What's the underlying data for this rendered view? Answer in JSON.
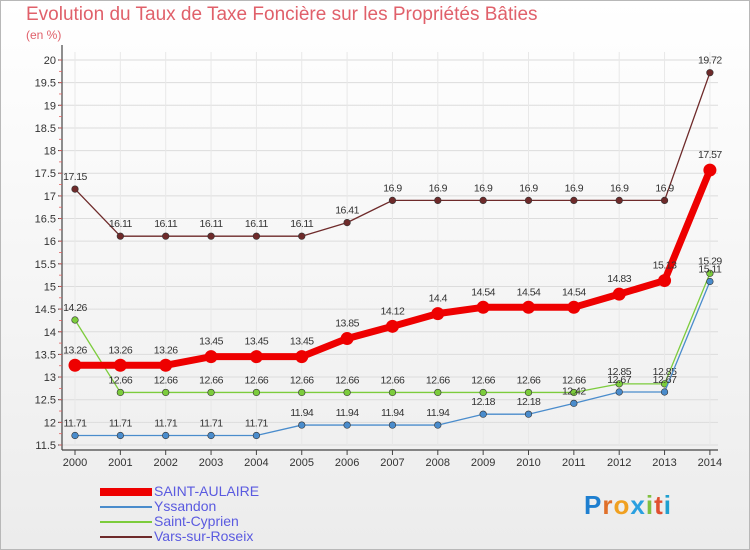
{
  "chart_data": {
    "type": "line",
    "title": "Evolution du Taux de Taxe Foncière sur les Propriétés Bâties",
    "unit_label": "(en %)",
    "x": [
      "2000",
      "2001",
      "2002",
      "2003",
      "2004",
      "2005",
      "2006",
      "2007",
      "2008",
      "2009",
      "2010",
      "2011",
      "2012",
      "2013",
      "2014"
    ],
    "y_ticks": [
      "11.5",
      "12",
      "12.5",
      "13",
      "13.5",
      "14",
      "14.5",
      "15",
      "15.5",
      "16",
      "16.5",
      "17",
      "17.5",
      "18",
      "18.5",
      "19",
      "19.5",
      "20"
    ],
    "ylim": [
      11.5,
      20
    ],
    "series": [
      {
        "name": "Vars-sur-Roseix",
        "color": "#6e2a2a",
        "values": [
          17.15,
          16.11,
          16.11,
          16.11,
          16.11,
          16.11,
          16.41,
          16.9,
          16.9,
          16.9,
          16.9,
          16.9,
          16.9,
          16.9,
          19.72
        ],
        "labels": [
          "17.15",
          "16.11",
          "16.11",
          "16.11",
          "16.11",
          "16.11",
          "16.41",
          "16.9",
          "16.9",
          "16.9",
          "16.9",
          "16.9",
          "16.9",
          "16.9",
          "19.72"
        ]
      },
      {
        "name": "Saint-Cyprien",
        "color": "#7ccc3c",
        "values": [
          14.26,
          12.66,
          12.66,
          12.66,
          12.66,
          12.66,
          12.66,
          12.66,
          12.66,
          12.66,
          12.66,
          12.66,
          12.85,
          12.85,
          15.29
        ],
        "labels": [
          "14.26",
          "12.66",
          "12.66",
          "12.66",
          "12.66",
          "12.66",
          "12.66",
          "12.66",
          "12.66",
          "12.66",
          "12.66",
          "12.66",
          "12.85",
          "12.85",
          "15.29"
        ]
      },
      {
        "name": "Yssandon",
        "color": "#4a8ccc",
        "values": [
          11.71,
          11.71,
          11.71,
          11.71,
          11.71,
          11.94,
          11.94,
          11.94,
          11.94,
          12.18,
          12.18,
          12.42,
          12.67,
          12.67,
          15.11
        ],
        "labels": [
          "11.71",
          "11.71",
          "11.71",
          "11.71",
          "11.71",
          "11.94",
          "11.94",
          "11.94",
          "11.94",
          "12.18",
          "12.18",
          "12.42",
          "12.67",
          "12.67",
          "15.11"
        ]
      },
      {
        "name": "SAINT-AULAIRE",
        "color": "#ee0000",
        "values": [
          13.26,
          13.26,
          13.26,
          13.45,
          13.45,
          13.45,
          13.85,
          14.12,
          14.4,
          14.54,
          14.54,
          14.54,
          14.83,
          15.13,
          17.57
        ],
        "labels": [
          "13.26",
          "13.26",
          "13.26",
          "13.45",
          "13.45",
          "13.45",
          "13.85",
          "14.12",
          "14.4",
          "14.54",
          "14.54",
          "14.54",
          "14.83",
          "15.13",
          "17.57"
        ]
      }
    ]
  },
  "legend": [
    {
      "label": "SAINT-AULAIRE",
      "color": "#ee0000"
    },
    {
      "label": "Yssandon",
      "color": "#4a8ccc"
    },
    {
      "label": "Saint-Cyprien",
      "color": "#7ccc3c"
    },
    {
      "label": "Vars-sur-Roseix",
      "color": "#6e2a2a"
    }
  ],
  "logo": {
    "text": "Proxiti",
    "colors": [
      "#1e7fd0",
      "#e0702a",
      "#f0a020",
      "#2aa0e0",
      "#80c040",
      "#e05030",
      "#20a0d0"
    ]
  }
}
